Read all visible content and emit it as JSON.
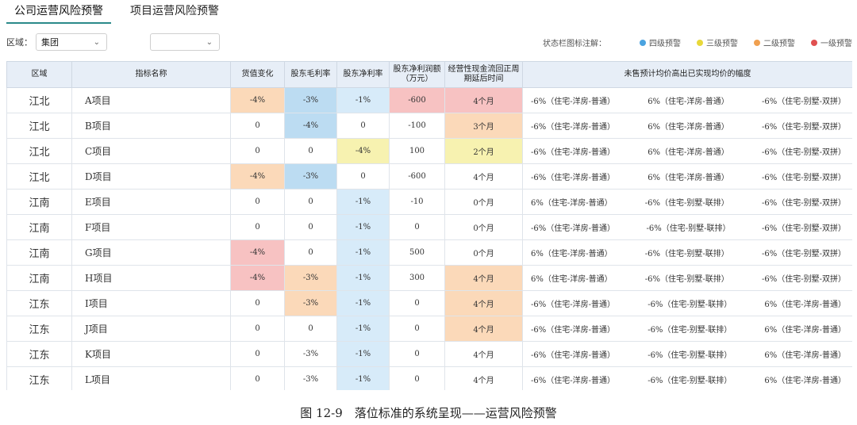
{
  "tabs": [
    {
      "label": "公司运营风险预警",
      "active": true
    },
    {
      "label": "项目运营风险预警",
      "active": false
    }
  ],
  "filters": {
    "region_label": "区域：",
    "region_value": "集团",
    "second_value": ""
  },
  "legend": {
    "title": "状态栏图标注解：",
    "items": [
      {
        "label": "四级预警",
        "color": "#4aa3e0"
      },
      {
        "label": "三级预警",
        "color": "#e8d83a"
      },
      {
        "label": "二级预警",
        "color": "#f0a050"
      },
      {
        "label": "一级预警",
        "color": "#e05050"
      }
    ]
  },
  "table": {
    "headers": [
      "区域",
      "指标名称",
      "货值变化",
      "股东毛利率",
      "股东净利率",
      "股东净利润额（万元）",
      "经营性现金流回正周期延后时间",
      "未售预计均价高出已实现均价的幅度"
    ],
    "rows": [
      {
        "region": "江北",
        "name": "A项目",
        "cells": [
          "-4%",
          "-3%",
          "-1%",
          "-600",
          "4个月"
        ],
        "colors": [
          "c-orange",
          "c-blue",
          "c-lblue",
          "c-pink",
          "c-pink"
        ],
        "ratios": [
          "-6%（住宅-洋房-普通）",
          "6%（住宅-洋房-普通）",
          "-6%（住宅-别墅-双拼）"
        ]
      },
      {
        "region": "江北",
        "name": "B项目",
        "cells": [
          "0",
          "-4%",
          "0",
          "-100",
          "3个月"
        ],
        "colors": [
          "",
          "c-blue",
          "",
          "",
          "c-orange"
        ],
        "ratios": [
          "-6%（住宅-洋房-普通）",
          "6%（住宅-洋房-普通）",
          "-6%（住宅-别墅-双拼）"
        ]
      },
      {
        "region": "江北",
        "name": "C项目",
        "cells": [
          "0",
          "0",
          "-4%",
          "100",
          "2个月"
        ],
        "colors": [
          "",
          "",
          "c-yellow",
          "",
          "c-yellow"
        ],
        "ratios": [
          "-6%（住宅-洋房-普通）",
          "6%（住宅-洋房-普通）",
          "-6%（住宅-别墅-双拼）"
        ]
      },
      {
        "region": "江北",
        "name": "D项目",
        "cells": [
          "-4%",
          "-3%",
          "0",
          "-600",
          "4个月"
        ],
        "colors": [
          "c-orange",
          "c-blue",
          "",
          "",
          ""
        ],
        "ratios": [
          "-6%（住宅-洋房-普通）",
          "6%（住宅-洋房-普通）",
          "-6%（住宅-别墅-双拼）"
        ]
      },
      {
        "region": "江南",
        "name": "E项目",
        "cells": [
          "0",
          "0",
          "-1%",
          "-10",
          "0个月"
        ],
        "colors": [
          "",
          "",
          "c-lblue",
          "",
          ""
        ],
        "ratios": [
          "6%（住宅-洋房-普通）",
          "-6%（住宅-别墅-联排）",
          "-6%（住宅-别墅-双拼）"
        ]
      },
      {
        "region": "江南",
        "name": "F项目",
        "cells": [
          "0",
          "0",
          "-1%",
          "0",
          "0个月"
        ],
        "colors": [
          "",
          "",
          "c-lblue",
          "",
          ""
        ],
        "ratios": [
          "-6%（住宅-洋房-普通）",
          "-6%（住宅-别墅-联排）",
          "-6%（住宅-别墅-双拼）"
        ]
      },
      {
        "region": "江南",
        "name": "G项目",
        "cells": [
          "-4%",
          "0",
          "-1%",
          "500",
          "0个月"
        ],
        "colors": [
          "c-pink",
          "",
          "c-lblue",
          "",
          ""
        ],
        "ratios": [
          "6%（住宅-洋房-普通）",
          "-6%（住宅-别墅-联排）",
          "-6%（住宅-别墅-双拼）"
        ]
      },
      {
        "region": "江南",
        "name": "H项目",
        "cells": [
          "-4%",
          "-3%",
          "-1%",
          "300",
          "4个月"
        ],
        "colors": [
          "c-pink",
          "c-orange",
          "c-lblue",
          "",
          "c-orange"
        ],
        "ratios": [
          "6%（住宅-洋房-普通）",
          "-6%（住宅-别墅-联排）",
          "-6%（住宅-别墅-双拼）"
        ]
      },
      {
        "region": "江东",
        "name": "I项目",
        "cells": [
          "0",
          "-3%",
          "-1%",
          "0",
          "4个月"
        ],
        "colors": [
          "",
          "c-orange",
          "c-lblue",
          "",
          "c-orange"
        ],
        "ratios": [
          "-6%（住宅-洋房-普通）",
          "-6%（住宅-别墅-联排）",
          "6%（住宅-洋房-普通）"
        ]
      },
      {
        "region": "江东",
        "name": "J项目",
        "cells": [
          "0",
          "0",
          "-1%",
          "0",
          "4个月"
        ],
        "colors": [
          "",
          "",
          "c-lblue",
          "",
          "c-orange"
        ],
        "ratios": [
          "-6%（住宅-洋房-普通）",
          "-6%（住宅-别墅-联排）",
          "6%（住宅-洋房-普通）"
        ]
      },
      {
        "region": "江东",
        "name": "K项目",
        "cells": [
          "0",
          "-3%",
          "-1%",
          "0",
          "4个月"
        ],
        "colors": [
          "",
          "",
          "c-lblue",
          "",
          ""
        ],
        "ratios": [
          "-6%（住宅-洋房-普通）",
          "-6%（住宅-别墅-联排）",
          "6%（住宅-洋房-普通）"
        ]
      },
      {
        "region": "江东",
        "name": "L项目",
        "cells": [
          "0",
          "-3%",
          "-1%",
          "0",
          "4个月"
        ],
        "colors": [
          "",
          "",
          "c-lblue",
          "",
          ""
        ],
        "ratios": [
          "-6%（住宅-洋房-普通）",
          "-6%（住宅-别墅-联排）",
          "6%（住宅-洋房-普通）"
        ]
      }
    ]
  },
  "caption": "图 12-9　落位标准的系统呈现——运营风险预警"
}
